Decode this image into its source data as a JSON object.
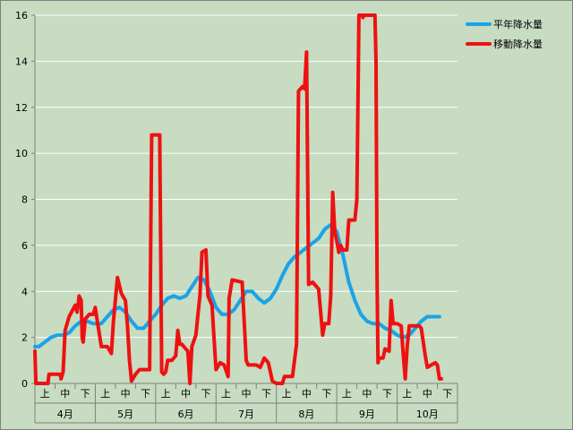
{
  "chart_data": {
    "type": "line",
    "title": "",
    "xlabel": "",
    "ylabel": "",
    "ylim": [
      0,
      16
    ],
    "yticks": [
      0,
      2,
      4,
      6,
      8,
      10,
      12,
      14,
      16
    ],
    "grid": "horizontal",
    "legend_position": "top-right",
    "x_range": [
      0,
      21
    ],
    "months": [
      "4月",
      "5月",
      "6月",
      "7月",
      "8月",
      "9月",
      "10月"
    ],
    "periods": [
      "上",
      "中",
      "下"
    ],
    "series": [
      {
        "name": "平年降水量",
        "color": "#1aa3e8",
        "points": [
          [
            0.0,
            1.6
          ],
          [
            0.2,
            1.6
          ],
          [
            0.5,
            1.8
          ],
          [
            0.8,
            2.0
          ],
          [
            1.1,
            2.1
          ],
          [
            1.4,
            2.1
          ],
          [
            1.7,
            2.2
          ],
          [
            2.0,
            2.5
          ],
          [
            2.3,
            2.7
          ],
          [
            2.6,
            2.7
          ],
          [
            2.9,
            2.6
          ],
          [
            3.3,
            2.6
          ],
          [
            3.6,
            2.9
          ],
          [
            3.9,
            3.2
          ],
          [
            4.2,
            3.3
          ],
          [
            4.5,
            3.1
          ],
          [
            4.8,
            2.7
          ],
          [
            5.1,
            2.4
          ],
          [
            5.4,
            2.4
          ],
          [
            5.7,
            2.7
          ],
          [
            6.0,
            3.0
          ],
          [
            6.3,
            3.4
          ],
          [
            6.6,
            3.7
          ],
          [
            6.9,
            3.8
          ],
          [
            7.2,
            3.7
          ],
          [
            7.5,
            3.8
          ],
          [
            7.8,
            4.2
          ],
          [
            8.1,
            4.6
          ],
          [
            8.4,
            4.5
          ],
          [
            8.7,
            4.0
          ],
          [
            9.0,
            3.3
          ],
          [
            9.3,
            3.0
          ],
          [
            9.6,
            3.0
          ],
          [
            9.9,
            3.2
          ],
          [
            10.2,
            3.6
          ],
          [
            10.5,
            4.0
          ],
          [
            10.8,
            4.0
          ],
          [
            11.1,
            3.7
          ],
          [
            11.4,
            3.5
          ],
          [
            11.7,
            3.7
          ],
          [
            12.0,
            4.1
          ],
          [
            12.3,
            4.7
          ],
          [
            12.6,
            5.2
          ],
          [
            12.9,
            5.5
          ],
          [
            13.2,
            5.7
          ],
          [
            13.5,
            5.9
          ],
          [
            13.8,
            6.1
          ],
          [
            14.1,
            6.3
          ],
          [
            14.4,
            6.7
          ],
          [
            14.7,
            6.9
          ],
          [
            15.0,
            6.6
          ],
          [
            15.3,
            5.6
          ],
          [
            15.6,
            4.4
          ],
          [
            15.9,
            3.6
          ],
          [
            16.2,
            3.0
          ],
          [
            16.5,
            2.7
          ],
          [
            16.8,
            2.6
          ],
          [
            17.1,
            2.6
          ],
          [
            17.4,
            2.4
          ],
          [
            17.7,
            2.3
          ],
          [
            18.0,
            2.1
          ],
          [
            18.3,
            2.0
          ],
          [
            18.6,
            2.1
          ],
          [
            18.9,
            2.4
          ],
          [
            19.2,
            2.7
          ],
          [
            19.5,
            2.9
          ],
          [
            19.9,
            2.9
          ],
          [
            20.1,
            2.9
          ]
        ]
      },
      {
        "name": "移動降水量",
        "color": "#ee1111",
        "points": [
          [
            0.0,
            1.4
          ],
          [
            0.05,
            0.0
          ],
          [
            0.65,
            0.0
          ],
          [
            0.7,
            0.4
          ],
          [
            1.25,
            0.4
          ],
          [
            1.3,
            0.2
          ],
          [
            1.4,
            0.5
          ],
          [
            1.5,
            2.3
          ],
          [
            1.7,
            2.9
          ],
          [
            2.0,
            3.4
          ],
          [
            2.1,
            3.1
          ],
          [
            2.2,
            3.8
          ],
          [
            2.3,
            3.6
          ],
          [
            2.35,
            2.0
          ],
          [
            2.4,
            1.8
          ],
          [
            2.5,
            2.8
          ],
          [
            2.7,
            3.0
          ],
          [
            2.9,
            3.0
          ],
          [
            3.0,
            3.3
          ],
          [
            3.1,
            2.7
          ],
          [
            3.3,
            1.6
          ],
          [
            3.6,
            1.6
          ],
          [
            3.8,
            1.3
          ],
          [
            3.9,
            2.7
          ],
          [
            4.1,
            4.6
          ],
          [
            4.3,
            3.9
          ],
          [
            4.5,
            3.6
          ],
          [
            4.6,
            2.5
          ],
          [
            4.7,
            1.0
          ],
          [
            4.8,
            0.1
          ],
          [
            5.0,
            0.4
          ],
          [
            5.2,
            0.6
          ],
          [
            5.5,
            0.6
          ],
          [
            5.7,
            0.6
          ],
          [
            5.8,
            10.8
          ],
          [
            6.2,
            10.8
          ],
          [
            6.3,
            0.5
          ],
          [
            6.4,
            0.4
          ],
          [
            6.5,
            0.5
          ],
          [
            6.6,
            1.0
          ],
          [
            6.8,
            1.0
          ],
          [
            7.0,
            1.2
          ],
          [
            7.1,
            2.3
          ],
          [
            7.2,
            1.7
          ],
          [
            7.3,
            1.7
          ],
          [
            7.5,
            1.5
          ],
          [
            7.6,
            1.4
          ],
          [
            7.7,
            0.0
          ],
          [
            7.8,
            1.6
          ],
          [
            8.0,
            2.1
          ],
          [
            8.1,
            3.0
          ],
          [
            8.2,
            3.8
          ],
          [
            8.3,
            5.7
          ],
          [
            8.5,
            5.8
          ],
          [
            8.6,
            3.8
          ],
          [
            8.8,
            3.4
          ],
          [
            8.9,
            2.0
          ],
          [
            9.0,
            0.6
          ],
          [
            9.2,
            0.9
          ],
          [
            9.4,
            0.8
          ],
          [
            9.6,
            0.3
          ],
          [
            9.65,
            3.7
          ],
          [
            9.8,
            4.5
          ],
          [
            10.3,
            4.4
          ],
          [
            10.5,
            1.0
          ],
          [
            10.6,
            0.8
          ],
          [
            11.0,
            0.8
          ],
          [
            11.2,
            0.7
          ],
          [
            11.4,
            1.1
          ],
          [
            11.6,
            0.9
          ],
          [
            11.7,
            0.5
          ],
          [
            11.8,
            0.1
          ],
          [
            12.0,
            0.0
          ],
          [
            12.3,
            0.0
          ],
          [
            12.4,
            0.3
          ],
          [
            12.6,
            0.3
          ],
          [
            12.8,
            0.3
          ],
          [
            13.0,
            1.7
          ],
          [
            13.1,
            12.7
          ],
          [
            13.3,
            12.9
          ],
          [
            13.4,
            12.8
          ],
          [
            13.5,
            14.4
          ],
          [
            13.6,
            4.3
          ],
          [
            13.8,
            4.4
          ],
          [
            14.1,
            4.1
          ],
          [
            14.3,
            2.1
          ],
          [
            14.4,
            2.6
          ],
          [
            14.6,
            2.6
          ],
          [
            14.7,
            3.8
          ],
          [
            14.8,
            8.3
          ],
          [
            14.9,
            6.6
          ],
          [
            15.0,
            6.2
          ],
          [
            15.1,
            5.7
          ],
          [
            15.2,
            6.0
          ],
          [
            15.3,
            5.8
          ],
          [
            15.5,
            5.8
          ],
          [
            15.6,
            7.1
          ],
          [
            15.9,
            7.1
          ],
          [
            16.0,
            8.0
          ],
          [
            16.1,
            16.0
          ],
          [
            16.25,
            16.0
          ],
          [
            16.3,
            15.9
          ],
          [
            16.35,
            16.0
          ],
          [
            16.9,
            16.0
          ],
          [
            16.95,
            14.0
          ],
          [
            17.0,
            4.8
          ],
          [
            17.05,
            0.9
          ],
          [
            17.1,
            1.1
          ],
          [
            17.3,
            1.1
          ],
          [
            17.4,
            1.5
          ],
          [
            17.6,
            1.4
          ],
          [
            17.7,
            3.6
          ],
          [
            17.8,
            2.6
          ],
          [
            18.0,
            2.6
          ],
          [
            18.2,
            2.5
          ],
          [
            18.3,
            1.3
          ],
          [
            18.4,
            0.2
          ],
          [
            18.5,
            1.6
          ],
          [
            18.6,
            2.5
          ],
          [
            18.8,
            2.5
          ],
          [
            19.1,
            2.5
          ],
          [
            19.2,
            2.4
          ],
          [
            19.4,
            1.2
          ],
          [
            19.5,
            0.7
          ],
          [
            19.7,
            0.8
          ],
          [
            19.9,
            0.9
          ],
          [
            20.0,
            0.8
          ],
          [
            20.1,
            0.2
          ],
          [
            20.2,
            0.2
          ]
        ]
      }
    ]
  }
}
